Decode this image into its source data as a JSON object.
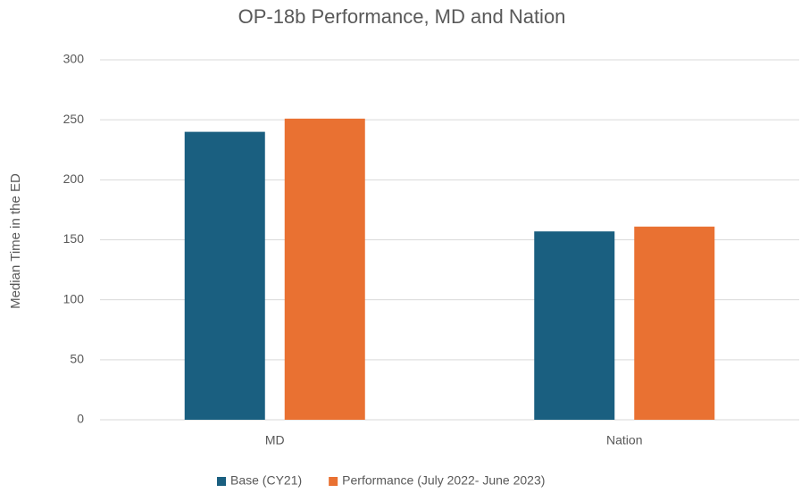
{
  "chart_data": {
    "type": "bar",
    "title": "OP-18b Performance, MD and Nation",
    "y_label": "Median Time in the ED",
    "categories": [
      "MD",
      "Nation"
    ],
    "series": [
      {
        "name": "Base (CY21)",
        "color": "#1a5f80",
        "values": [
          240,
          157
        ]
      },
      {
        "name": "Performance (July 2022- June 2023)",
        "color": "#e97132",
        "values": [
          251,
          161
        ]
      }
    ],
    "ylim": [
      0,
      300
    ],
    "yticks": [
      0,
      50,
      100,
      150,
      200,
      250,
      300
    ],
    "grid": true,
    "legend": "bottom"
  }
}
